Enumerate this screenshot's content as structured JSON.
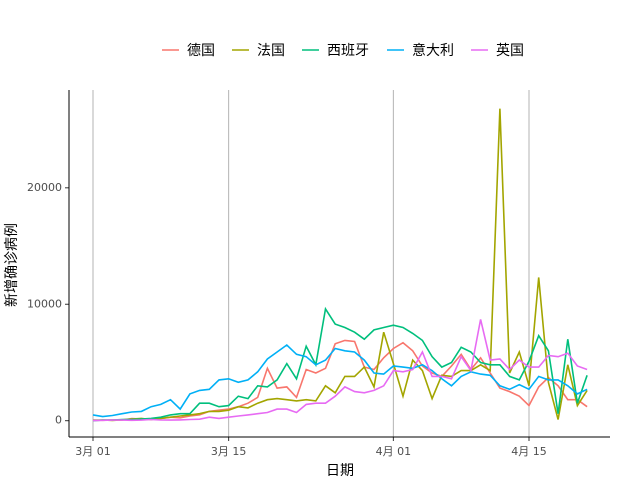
{
  "chart_data": {
    "type": "line",
    "x_label": "日期",
    "y_label": "新增确诊病例",
    "categories": [
      "3月 01",
      null,
      null,
      null,
      null,
      null,
      null,
      null,
      null,
      null,
      null,
      null,
      null,
      null,
      "3月 15",
      null,
      null,
      null,
      null,
      null,
      null,
      null,
      null,
      null,
      null,
      null,
      null,
      null,
      null,
      null,
      null,
      "4月 01",
      null,
      null,
      null,
      null,
      null,
      null,
      null,
      null,
      null,
      null,
      null,
      null,
      null,
      "4月 15",
      null,
      null,
      null,
      null,
      null,
      null
    ],
    "series": [
      {
        "name": "德国",
        "color": "#F8766D",
        "values": [
          60,
          30,
          70,
          50,
          180,
          150,
          100,
          200,
          300,
          250,
          400,
          500,
          800,
          900,
          1000,
          1200,
          1500,
          2000,
          4500,
          2800,
          2900,
          2000,
          4400,
          4100,
          4500,
          6600,
          6900,
          6800,
          4600,
          4400,
          5400,
          6200,
          6700,
          6000,
          4700,
          4100,
          3800,
          4700,
          5700,
          4400,
          5400,
          4100,
          2800,
          2500,
          2100,
          1300,
          2900,
          3700,
          3000,
          1800,
          1800,
          1200
        ]
      },
      {
        "name": "法国",
        "color": "#A3A500",
        "values": [
          30,
          60,
          20,
          80,
          140,
          200,
          100,
          200,
          300,
          400,
          500,
          600,
          800,
          800,
          900,
          1200,
          1100,
          1500,
          1800,
          1900,
          1800,
          1700,
          1800,
          1700,
          3000,
          2400,
          3800,
          3800,
          4600,
          2900,
          7600,
          4900,
          2100,
          5200,
          4300,
          1900,
          3900,
          3800,
          4300,
          4300,
          4800,
          4300,
          26800,
          4100,
          5900,
          3000,
          12300,
          3300,
          100,
          4800,
          1300,
          2600
        ]
      },
      {
        "name": "西班牙",
        "color": "#00BF7D",
        "values": [
          0,
          50,
          60,
          100,
          100,
          150,
          200,
          300,
          500,
          600,
          600,
          1500,
          1500,
          1200,
          1300,
          2100,
          1900,
          3000,
          2900,
          3500,
          4900,
          3600,
          6400,
          4800,
          9600,
          8300,
          8000,
          7600,
          7000,
          7800,
          8000,
          8200,
          8000,
          7500,
          6900,
          5500,
          4600,
          5000,
          6300,
          5900,
          5000,
          4800,
          4800,
          3800,
          3500,
          5100,
          7300,
          6000,
          600,
          7000,
          1500,
          3900
        ]
      },
      {
        "name": "意大利",
        "color": "#00B0F6",
        "values": [
          500,
          350,
          450,
          600,
          750,
          800,
          1200,
          1400,
          1800,
          1000,
          2300,
          2600,
          2700,
          3500,
          3600,
          3300,
          3500,
          4200,
          5300,
          5900,
          6500,
          5700,
          5500,
          4800,
          5200,
          6200,
          6000,
          5900,
          5200,
          4100,
          4000,
          4700,
          4600,
          4500,
          4800,
          4300,
          3600,
          3000,
          3800,
          4200,
          4000,
          3900,
          3000,
          2700,
          3100,
          2700,
          3800,
          3500,
          3500,
          3000,
          2300,
          2700
        ]
      },
      {
        "name": "英国",
        "color": "#E76BF3",
        "values": [
          10,
          30,
          50,
          50,
          30,
          50,
          100,
          60,
          50,
          70,
          100,
          130,
          300,
          200,
          300,
          400,
          500,
          600,
          700,
          1000,
          1000,
          700,
          1400,
          1500,
          1500,
          2100,
          2900,
          2500,
          2400,
          2600,
          3000,
          4300,
          4200,
          4400,
          5900,
          3800,
          3800,
          3600,
          5500,
          4300,
          8700,
          5200,
          5300,
          4400,
          5200,
          4600,
          4600,
          5600,
          5500,
          5800,
          4700,
          4400
        ]
      }
    ],
    "ylim": [
      -1400,
      28400
    ],
    "yticks": [
      0,
      10000,
      20000
    ],
    "grid": "x",
    "legend": "top"
  }
}
